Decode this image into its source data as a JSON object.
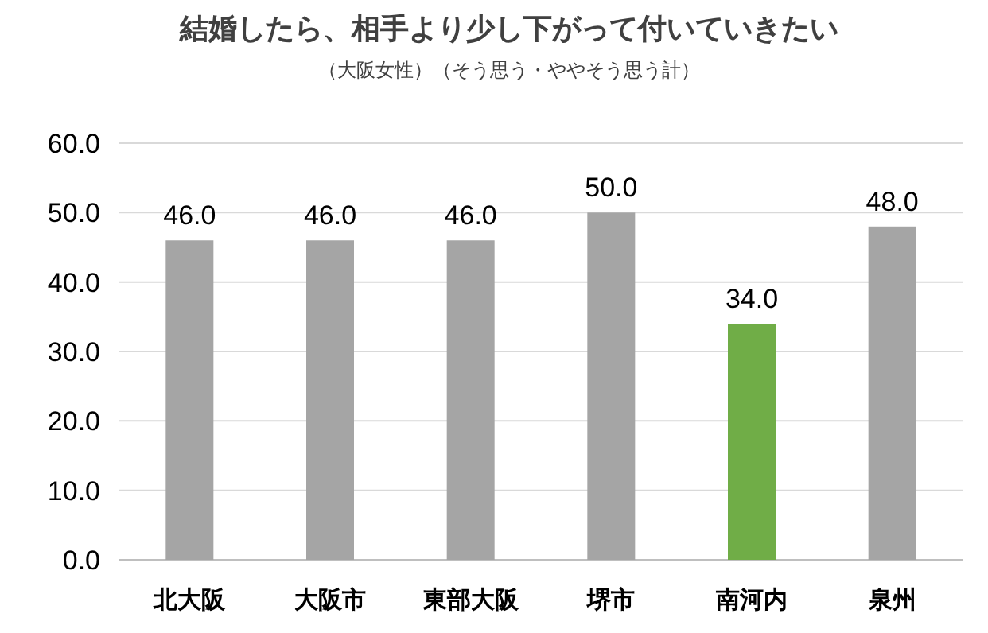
{
  "chart_data": {
    "type": "bar",
    "title": "結婚したら、相手より少し下がって付いていきたい",
    "subtitle": "（大阪女性）（そう思う・ややそう思う計）",
    "categories": [
      "北大阪",
      "大阪市",
      "東部大阪",
      "堺市",
      "南河内",
      "泉州"
    ],
    "values": [
      46,
      46,
      46,
      50,
      34,
      48
    ],
    "colors": [
      "#a5a5a5",
      "#a5a5a5",
      "#a5a5a5",
      "#a5a5a5",
      "#70ad47",
      "#a5a5a5"
    ],
    "value_labels": [
      "46.0",
      "46.0",
      "46.0",
      "50.0",
      "34.0",
      "48.0"
    ],
    "ylim": [
      0,
      60
    ],
    "yticks": [
      {
        "value": 0,
        "label": "0.0"
      },
      {
        "value": 10,
        "label": "10.0"
      },
      {
        "value": 20,
        "label": "20.0"
      },
      {
        "value": 30,
        "label": "30.0"
      },
      {
        "value": 40,
        "label": "40.0"
      },
      {
        "value": 50,
        "label": "50.0"
      },
      {
        "value": 60,
        "label": "60.0"
      }
    ],
    "grid": "y"
  }
}
